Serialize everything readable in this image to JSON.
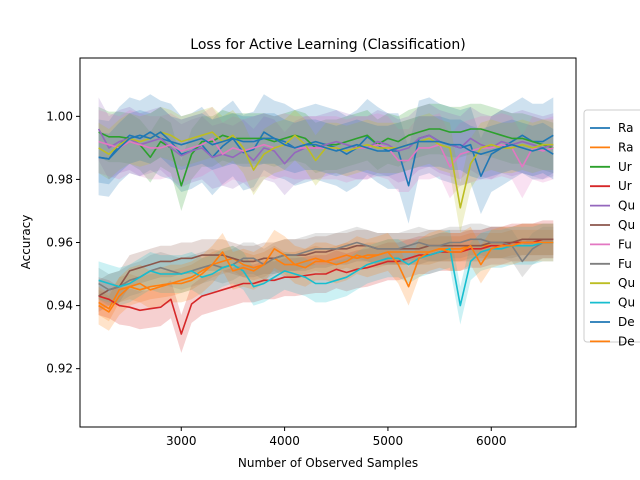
{
  "chart_data": {
    "type": "line",
    "title": "Loss for Active Learning (Classification)",
    "xlabel": "Number of Observed Samples",
    "ylabel": "Accuracy",
    "xlim": [
      2020,
      6820
    ],
    "ylim": [
      0.9015,
      1.0185
    ],
    "x_ticks": [
      3000,
      4000,
      5000,
      6000
    ],
    "y_ticks": [
      0.92,
      0.94,
      0.96,
      0.98,
      1.0
    ],
    "y_tick_labels": [
      "0.92",
      "0.94",
      "0.96",
      "0.98",
      "1.00"
    ],
    "grid": false,
    "legend_position": "right, partially clipped",
    "x": [
      2200,
      2300,
      2400,
      2500,
      2600,
      2700,
      2800,
      2900,
      3000,
      3100,
      3200,
      3300,
      3400,
      3500,
      3600,
      3700,
      3800,
      3900,
      4000,
      4100,
      4200,
      4300,
      4400,
      4500,
      4600,
      4700,
      4800,
      4900,
      5000,
      5100,
      5200,
      5300,
      5400,
      5500,
      5600,
      5700,
      5800,
      5900,
      6000,
      6100,
      6200,
      6300,
      6400,
      6500,
      6600
    ],
    "series": [
      {
        "name": "Ra",
        "color": "#1f77b4",
        "band": 0.012,
        "values": [
          0.987,
          0.9865,
          0.991,
          0.994,
          0.993,
          0.995,
          0.993,
          0.992,
          0.988,
          0.989,
          0.991,
          0.987,
          0.9905,
          0.993,
          0.9885,
          0.9895,
          0.995,
          0.993,
          0.992,
          0.99,
          0.991,
          0.992,
          0.991,
          0.99,
          0.988,
          0.99,
          0.9935,
          0.991,
          0.989,
          0.989,
          0.978,
          0.993,
          0.994,
          0.992,
          0.991,
          0.99,
          0.991,
          0.981,
          0.988,
          0.99,
          0.992,
          0.994,
          0.992,
          0.992,
          0.994
        ]
      },
      {
        "name": "Ra",
        "color": "#ff7f0e",
        "band": 0.004,
        "values": [
          0.941,
          0.939,
          0.945,
          0.946,
          0.945,
          0.946,
          0.9465,
          0.947,
          0.948,
          0.949,
          0.951,
          0.953,
          0.954,
          0.955,
          0.953,
          0.952,
          0.953,
          0.955,
          0.953,
          0.953,
          0.954,
          0.955,
          0.954,
          0.955,
          0.956,
          0.955,
          0.956,
          0.956,
          0.957,
          0.957,
          0.957,
          0.957,
          0.957,
          0.958,
          0.958,
          0.958,
          0.959,
          0.959,
          0.959,
          0.959,
          0.96,
          0.96,
          0.96,
          0.96,
          0.96
        ]
      },
      {
        "name": "Ur",
        "color": "#2ca02c",
        "band": 0.008,
        "values": [
          0.995,
          0.9935,
          0.9935,
          0.993,
          0.991,
          0.987,
          0.992,
          0.99,
          0.978,
          0.988,
          0.992,
          0.992,
          0.994,
          0.993,
          0.993,
          0.993,
          0.993,
          0.992,
          0.993,
          0.994,
          0.993,
          0.99,
          0.991,
          0.991,
          0.992,
          0.993,
          0.994,
          0.991,
          0.993,
          0.992,
          0.994,
          0.995,
          0.996,
          0.996,
          0.995,
          0.995,
          0.996,
          0.996,
          0.995,
          0.994,
          0.993,
          0.993,
          0.992,
          0.991,
          0.99
        ]
      },
      {
        "name": "Ur",
        "color": "#d62728",
        "band": 0.006,
        "values": [
          0.943,
          0.942,
          0.94,
          0.9395,
          0.9385,
          0.939,
          0.9395,
          0.942,
          0.931,
          0.9405,
          0.943,
          0.944,
          0.945,
          0.946,
          0.947,
          0.947,
          0.948,
          0.948,
          0.949,
          0.949,
          0.9495,
          0.95,
          0.95,
          0.9515,
          0.9505,
          0.9515,
          0.952,
          0.953,
          0.954,
          0.954,
          0.955,
          0.956,
          0.956,
          0.957,
          0.957,
          0.957,
          0.958,
          0.958,
          0.959,
          0.959,
          0.96,
          0.96,
          0.96,
          0.961,
          0.961
        ]
      },
      {
        "name": "Qu",
        "color": "#9467bd",
        "band": 0.01,
        "values": [
          0.996,
          0.99,
          0.992,
          0.993,
          0.991,
          0.992,
          0.993,
          0.99,
          0.9875,
          0.989,
          0.99,
          0.987,
          0.988,
          0.987,
          0.989,
          0.986,
          0.99,
          0.989,
          0.985,
          0.9885,
          0.99,
          0.99,
          0.991,
          0.992,
          0.991,
          0.99,
          0.99,
          0.992,
          0.991,
          0.989,
          0.99,
          0.993,
          0.994,
          0.992,
          0.991,
          0.99,
          0.993,
          0.991,
          0.99,
          0.992,
          0.991,
          0.992,
          0.991,
          0.99,
          0.991
        ]
      },
      {
        "name": "Qu",
        "color": "#8c564b",
        "band": 0.005,
        "values": [
          0.943,
          0.945,
          0.946,
          0.951,
          0.952,
          0.953,
          0.954,
          0.954,
          0.955,
          0.955,
          0.956,
          0.956,
          0.956,
          0.955,
          0.954,
          0.954,
          0.955,
          0.955,
          0.956,
          0.956,
          0.956,
          0.957,
          0.957,
          0.958,
          0.958,
          0.959,
          0.959,
          0.958,
          0.958,
          0.958,
          0.958,
          0.958,
          0.959,
          0.959,
          0.959,
          0.959,
          0.959,
          0.959,
          0.96,
          0.96,
          0.96,
          0.961,
          0.961,
          0.961,
          0.961
        ]
      },
      {
        "name": "Fu",
        "color": "#e377c2",
        "band": 0.01,
        "values": [
          0.992,
          0.991,
          0.99,
          0.992,
          0.991,
          0.99,
          0.99,
          0.991,
          0.989,
          0.99,
          0.991,
          0.993,
          0.988,
          0.99,
          0.989,
          0.99,
          0.991,
          0.99,
          0.991,
          0.99,
          0.99,
          0.99,
          0.99,
          0.99,
          0.989,
          0.99,
          0.99,
          0.991,
          0.99,
          0.986,
          0.986,
          0.99,
          0.99,
          0.991,
          0.984,
          0.988,
          0.989,
          0.99,
          0.99,
          0.991,
          0.99,
          0.984,
          0.99,
          0.989,
          0.99
        ]
      },
      {
        "name": "Fu",
        "color": "#7f7f7f",
        "band": 0.005,
        "values": [
          0.947,
          0.945,
          0.946,
          0.948,
          0.949,
          0.951,
          0.952,
          0.951,
          0.95,
          0.951,
          0.952,
          0.953,
          0.952,
          0.953,
          0.955,
          0.955,
          0.953,
          0.955,
          0.956,
          0.956,
          0.957,
          0.958,
          0.958,
          0.958,
          0.959,
          0.96,
          0.959,
          0.958,
          0.958,
          0.958,
          0.959,
          0.96,
          0.959,
          0.959,
          0.96,
          0.96,
          0.961,
          0.961,
          0.96,
          0.96,
          0.959,
          0.954,
          0.958,
          0.96,
          0.96
        ]
      },
      {
        "name": "Qu",
        "color": "#bcbd22",
        "band": 0.008,
        "values": [
          0.99,
          0.988,
          0.991,
          0.993,
          0.992,
          0.993,
          0.995,
          0.994,
          0.992,
          0.993,
          0.994,
          0.995,
          0.992,
          0.994,
          0.99,
          0.983,
          0.988,
          0.99,
          0.991,
          0.994,
          0.991,
          0.986,
          0.99,
          0.99,
          0.989,
          0.99,
          0.991,
          0.99,
          0.99,
          0.99,
          0.991,
          0.992,
          0.993,
          0.991,
          0.99,
          0.971,
          0.985,
          0.99,
          0.991,
          0.99,
          0.99,
          0.991,
          0.99,
          0.991,
          0.991
        ]
      },
      {
        "name": "Qu",
        "color": "#17becf",
        "band": 0.006,
        "values": [
          0.948,
          0.947,
          0.946,
          0.947,
          0.949,
          0.951,
          0.95,
          0.95,
          0.95,
          0.951,
          0.949,
          0.95,
          0.952,
          0.953,
          0.951,
          0.946,
          0.947,
          0.949,
          0.951,
          0.95,
          0.949,
          0.947,
          0.947,
          0.948,
          0.949,
          0.951,
          0.953,
          0.954,
          0.955,
          0.955,
          0.953,
          0.955,
          0.956,
          0.957,
          0.958,
          0.94,
          0.954,
          0.957,
          0.958,
          0.958,
          0.959,
          0.959,
          0.959,
          0.96,
          0.96
        ]
      },
      {
        "name": "De",
        "color": "#1f77b4",
        "band": 0.008,
        "values": [
          0.987,
          0.9865,
          0.99,
          0.993,
          0.994,
          0.993,
          0.995,
          0.992,
          0.991,
          0.992,
          0.993,
          0.991,
          0.992,
          0.993,
          0.992,
          0.992,
          0.993,
          0.993,
          0.991,
          0.99,
          0.991,
          0.991,
          0.99,
          0.989,
          0.99,
          0.991,
          0.99,
          0.989,
          0.989,
          0.99,
          0.991,
          0.992,
          0.992,
          0.992,
          0.991,
          0.991,
          0.989,
          0.988,
          0.989,
          0.99,
          0.991,
          0.99,
          0.989,
          0.99,
          0.988
        ]
      },
      {
        "name": "De",
        "color": "#ff7f0e",
        "band": 0.006,
        "values": [
          0.94,
          0.938,
          0.943,
          0.946,
          0.947,
          0.945,
          0.946,
          0.947,
          0.947,
          0.948,
          0.95,
          0.953,
          0.957,
          0.951,
          0.952,
          0.951,
          0.953,
          0.958,
          0.956,
          0.953,
          0.952,
          0.954,
          0.954,
          0.953,
          0.954,
          0.956,
          0.955,
          0.956,
          0.957,
          0.953,
          0.946,
          0.955,
          0.957,
          0.958,
          0.957,
          0.957,
          0.959,
          0.953,
          0.958,
          0.959,
          0.959,
          0.96,
          0.96,
          0.96,
          0.96
        ]
      }
    ]
  }
}
